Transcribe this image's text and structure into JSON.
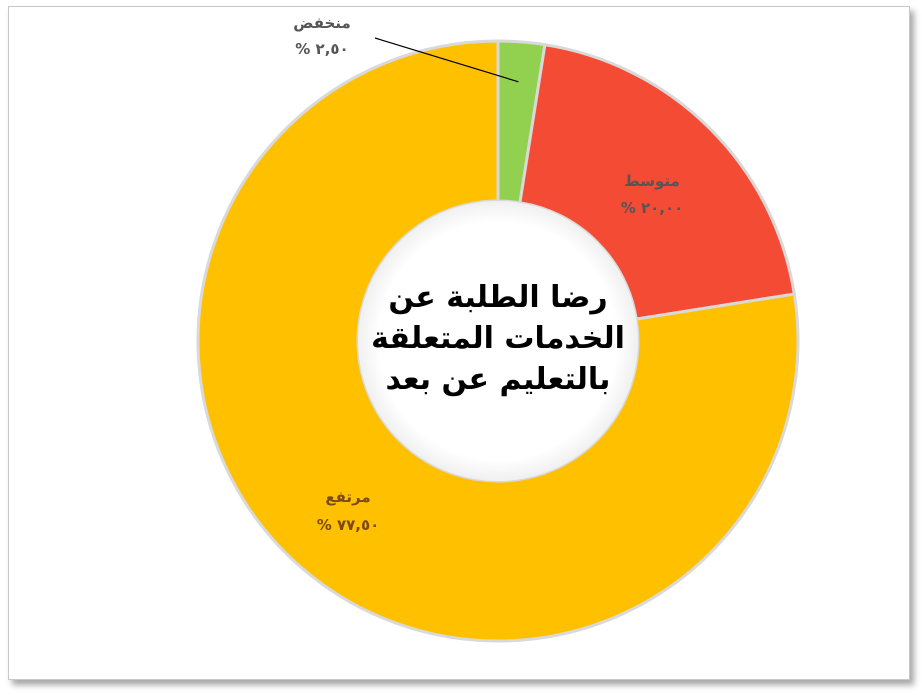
{
  "chart_data": {
    "type": "donut",
    "title_lines": [
      "رضا الطلبة عن",
      "الخدمات المتعلقة",
      "بالتعليم عن بعد"
    ],
    "slices": [
      {
        "name": "منخفض",
        "label": "٢,٥٠ %",
        "value": 2.5,
        "color": "#92d050"
      },
      {
        "name": "متوسط",
        "label": "٢٠,٠٠ %",
        "value": 20.0,
        "color": "#f44b35"
      },
      {
        "name": "مرتفع",
        "label": "٧٧,٥٠ %",
        "value": 77.5,
        "color": "#ffc000"
      }
    ]
  }
}
